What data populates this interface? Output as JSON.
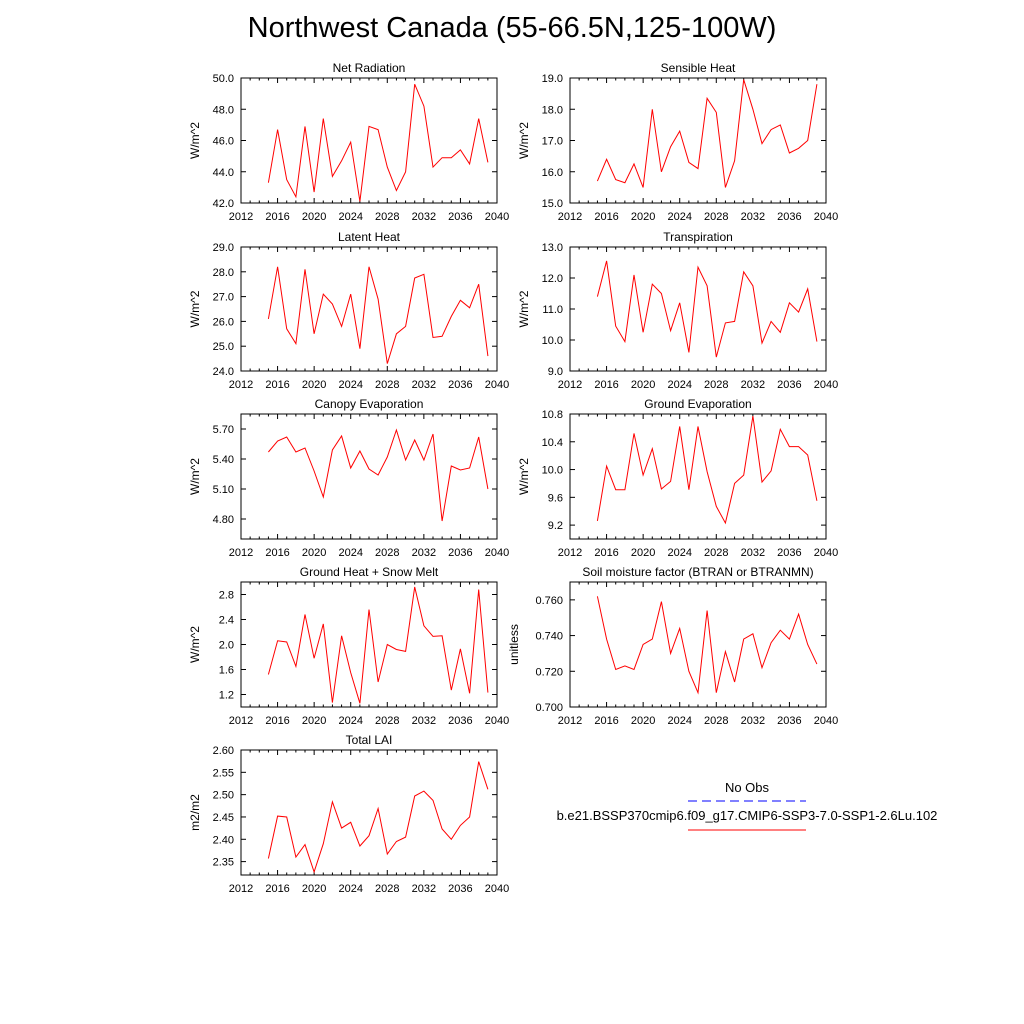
{
  "page_title": "Northwest Canada (55-66.5N,125-100W)",
  "legend": {
    "obs_label": "No Obs",
    "case_label": "b.e21.BSSP370cmip6.f09_g17.CMIP6-SSP3-7.0-SSP1-2.6Lu.102",
    "obs_color": "#0000ff",
    "case_color": "#ff0000"
  },
  "chart_data": [
    {
      "type": "line",
      "title": "Net Radiation",
      "ylabel": "W/m^2",
      "xlim": [
        2012,
        2040
      ],
      "ylim": [
        42.0,
        50.0
      ],
      "xticks": [
        2012,
        2016,
        2020,
        2024,
        2028,
        2032,
        2036,
        2040
      ],
      "yticks": [
        42.0,
        44.0,
        46.0,
        48.0,
        50.0
      ],
      "ytick_labels": [
        "42.0",
        "44.0",
        "46.0",
        "48.0",
        "50.0"
      ],
      "x": [
        2015,
        2016,
        2017,
        2018,
        2019,
        2020,
        2021,
        2022,
        2023,
        2024,
        2025,
        2026,
        2027,
        2028,
        2029,
        2030,
        2031,
        2032,
        2033,
        2034,
        2035,
        2036,
        2037,
        2038,
        2039
      ],
      "series": [
        {
          "values": [
            43.3,
            46.7,
            43.5,
            42.4,
            46.9,
            42.7,
            47.4,
            43.7,
            44.7,
            45.9,
            42.1,
            46.9,
            46.7,
            44.3,
            42.8,
            44.0,
            49.6,
            48.2,
            44.3,
            44.9,
            44.9,
            45.4,
            44.5,
            47.4,
            44.6
          ]
        }
      ]
    },
    {
      "type": "line",
      "title": "Sensible Heat",
      "ylabel": "W/m^2",
      "xlim": [
        2012,
        2040
      ],
      "ylim": [
        15.0,
        19.0
      ],
      "xticks": [
        2012,
        2016,
        2020,
        2024,
        2028,
        2032,
        2036,
        2040
      ],
      "yticks": [
        15.0,
        16.0,
        17.0,
        18.0,
        19.0
      ],
      "ytick_labels": [
        "15.0",
        "16.0",
        "17.0",
        "18.0",
        "19.0"
      ],
      "x": [
        2015,
        2016,
        2017,
        2018,
        2019,
        2020,
        2021,
        2022,
        2023,
        2024,
        2025,
        2026,
        2027,
        2028,
        2029,
        2030,
        2031,
        2032,
        2033,
        2034,
        2035,
        2036,
        2037,
        2038,
        2039
      ],
      "series": [
        {
          "values": [
            15.7,
            16.4,
            15.75,
            15.65,
            16.25,
            15.5,
            18.0,
            16.0,
            16.8,
            17.3,
            16.3,
            16.1,
            18.35,
            17.9,
            15.5,
            16.35,
            18.95,
            18.0,
            16.9,
            17.35,
            17.5,
            16.6,
            16.75,
            17.0,
            18.8
          ]
        }
      ]
    },
    {
      "type": "line",
      "title": "Latent Heat",
      "ylabel": "W/m^2",
      "xlim": [
        2012,
        2040
      ],
      "ylim": [
        24.0,
        29.0
      ],
      "xticks": [
        2012,
        2016,
        2020,
        2024,
        2028,
        2032,
        2036,
        2040
      ],
      "yticks": [
        24.0,
        25.0,
        26.0,
        27.0,
        28.0,
        29.0
      ],
      "ytick_labels": [
        "24.0",
        "25.0",
        "26.0",
        "27.0",
        "28.0",
        "29.0"
      ],
      "x": [
        2015,
        2016,
        2017,
        2018,
        2019,
        2020,
        2021,
        2022,
        2023,
        2024,
        2025,
        2026,
        2027,
        2028,
        2029,
        2030,
        2031,
        2032,
        2033,
        2034,
        2035,
        2036,
        2037,
        2038,
        2039
      ],
      "series": [
        {
          "values": [
            26.1,
            28.2,
            25.7,
            25.1,
            28.1,
            25.5,
            27.1,
            26.7,
            25.8,
            27.1,
            24.9,
            28.2,
            26.9,
            24.3,
            25.5,
            25.8,
            27.75,
            27.9,
            25.35,
            25.4,
            26.2,
            26.85,
            26.55,
            27.5,
            24.6
          ]
        }
      ]
    },
    {
      "type": "line",
      "title": "Transpiration",
      "ylabel": "W/m^2",
      "xlim": [
        2012,
        2040
      ],
      "ylim": [
        9.0,
        13.0
      ],
      "xticks": [
        2012,
        2016,
        2020,
        2024,
        2028,
        2032,
        2036,
        2040
      ],
      "yticks": [
        9.0,
        10.0,
        11.0,
        12.0,
        13.0
      ],
      "ytick_labels": [
        "9.0",
        "10.0",
        "11.0",
        "12.0",
        "13.0"
      ],
      "x": [
        2015,
        2016,
        2017,
        2018,
        2019,
        2020,
        2021,
        2022,
        2023,
        2024,
        2025,
        2026,
        2027,
        2028,
        2029,
        2030,
        2031,
        2032,
        2033,
        2034,
        2035,
        2036,
        2037,
        2038,
        2039
      ],
      "series": [
        {
          "values": [
            11.4,
            12.55,
            10.45,
            9.95,
            12.1,
            10.25,
            11.8,
            11.5,
            10.3,
            11.2,
            9.6,
            12.35,
            11.75,
            9.45,
            10.55,
            10.6,
            12.2,
            11.75,
            9.9,
            10.6,
            10.25,
            11.2,
            10.9,
            11.65,
            9.95
          ]
        }
      ]
    },
    {
      "type": "line",
      "title": "Canopy Evaporation",
      "ylabel": "W/m^2",
      "xlim": [
        2012,
        2040
      ],
      "ylim": [
        4.6,
        5.85
      ],
      "xticks": [
        2012,
        2016,
        2020,
        2024,
        2028,
        2032,
        2036,
        2040
      ],
      "yticks": [
        4.8,
        5.1,
        5.4,
        5.7
      ],
      "ytick_labels": [
        "4.80",
        "5.10",
        "5.40",
        "5.70"
      ],
      "x": [
        2015,
        2016,
        2017,
        2018,
        2019,
        2020,
        2021,
        2022,
        2023,
        2024,
        2025,
        2026,
        2027,
        2028,
        2029,
        2030,
        2031,
        2032,
        2033,
        2034,
        2035,
        2036,
        2037,
        2038,
        2039
      ],
      "series": [
        {
          "values": [
            5.47,
            5.58,
            5.62,
            5.47,
            5.51,
            5.28,
            5.02,
            5.49,
            5.63,
            5.31,
            5.48,
            5.3,
            5.24,
            5.42,
            5.69,
            5.39,
            5.59,
            5.39,
            5.65,
            4.78,
            5.33,
            5.29,
            5.31,
            5.62,
            5.1
          ]
        }
      ]
    },
    {
      "type": "line",
      "title": "Ground Evaporation",
      "ylabel": "W/m^2",
      "xlim": [
        2012,
        2040
      ],
      "ylim": [
        9.0,
        10.8
      ],
      "xticks": [
        2012,
        2016,
        2020,
        2024,
        2028,
        2032,
        2036,
        2040
      ],
      "yticks": [
        9.2,
        9.6,
        10.0,
        10.4,
        10.8
      ],
      "ytick_labels": [
        "9.2",
        "9.6",
        "10.0",
        "10.4",
        "10.8"
      ],
      "x": [
        2015,
        2016,
        2017,
        2018,
        2019,
        2020,
        2021,
        2022,
        2023,
        2024,
        2025,
        2026,
        2027,
        2028,
        2029,
        2030,
        2031,
        2032,
        2033,
        2034,
        2035,
        2036,
        2037,
        2038,
        2039
      ],
      "series": [
        {
          "values": [
            9.26,
            10.05,
            9.71,
            9.71,
            10.52,
            9.92,
            10.3,
            9.72,
            9.83,
            10.62,
            9.71,
            10.62,
            9.97,
            9.47,
            9.23,
            9.8,
            9.92,
            10.77,
            9.82,
            9.98,
            10.58,
            10.33,
            10.33,
            10.21,
            9.55
          ]
        }
      ]
    },
    {
      "type": "line",
      "title": "Ground Heat + Snow Melt",
      "ylabel": "W/m^2",
      "xlim": [
        2012,
        2040
      ],
      "ylim": [
        1.0,
        3.0
      ],
      "xticks": [
        2012,
        2016,
        2020,
        2024,
        2028,
        2032,
        2036,
        2040
      ],
      "yticks": [
        1.2,
        1.6,
        2.0,
        2.4,
        2.8
      ],
      "ytick_labels": [
        "1.2",
        "1.6",
        "2.0",
        "2.4",
        "2.8"
      ],
      "x": [
        2015,
        2016,
        2017,
        2018,
        2019,
        2020,
        2021,
        2022,
        2023,
        2024,
        2025,
        2026,
        2027,
        2028,
        2029,
        2030,
        2031,
        2032,
        2033,
        2034,
        2035,
        2036,
        2037,
        2038,
        2039
      ],
      "series": [
        {
          "values": [
            1.52,
            2.06,
            2.04,
            1.65,
            2.48,
            1.78,
            2.33,
            1.07,
            2.14,
            1.55,
            1.06,
            2.56,
            1.4,
            2.0,
            1.92,
            1.89,
            2.92,
            2.3,
            2.13,
            2.14,
            1.27,
            1.93,
            1.22,
            2.88,
            1.23
          ]
        }
      ]
    },
    {
      "type": "line",
      "title": "Soil moisture factor (BTRAN or BTRANMN)",
      "ylabel": "unitless",
      "xlim": [
        2012,
        2040
      ],
      "ylim": [
        0.7,
        0.77
      ],
      "xticks": [
        2012,
        2016,
        2020,
        2024,
        2028,
        2032,
        2036,
        2040
      ],
      "yticks": [
        0.7,
        0.72,
        0.74,
        0.76
      ],
      "ytick_labels": [
        "0.700",
        "0.720",
        "0.740",
        "0.760"
      ],
      "x": [
        2015,
        2016,
        2017,
        2018,
        2019,
        2020,
        2021,
        2022,
        2023,
        2024,
        2025,
        2026,
        2027,
        2028,
        2029,
        2030,
        2031,
        2032,
        2033,
        2034,
        2035,
        2036,
        2037,
        2038,
        2039
      ],
      "series": [
        {
          "values": [
            0.762,
            0.738,
            0.721,
            0.723,
            0.721,
            0.735,
            0.738,
            0.759,
            0.73,
            0.744,
            0.72,
            0.708,
            0.754,
            0.708,
            0.731,
            0.714,
            0.738,
            0.741,
            0.722,
            0.736,
            0.743,
            0.738,
            0.752,
            0.735,
            0.724
          ]
        }
      ]
    },
    {
      "type": "line",
      "title": "Total LAI",
      "ylabel": "m2/m2",
      "xlim": [
        2012,
        2040
      ],
      "ylim": [
        2.32,
        2.6
      ],
      "xticks": [
        2012,
        2016,
        2020,
        2024,
        2028,
        2032,
        2036,
        2040
      ],
      "yticks": [
        2.35,
        2.4,
        2.45,
        2.5,
        2.55,
        2.6
      ],
      "ytick_labels": [
        "2.35",
        "2.40",
        "2.45",
        "2.50",
        "2.55",
        "2.60"
      ],
      "x": [
        2015,
        2016,
        2017,
        2018,
        2019,
        2020,
        2021,
        2022,
        2023,
        2024,
        2025,
        2026,
        2027,
        2028,
        2029,
        2030,
        2031,
        2032,
        2033,
        2034,
        2035,
        2036,
        2037,
        2038,
        2039
      ],
      "series": [
        {
          "values": [
            2.357,
            2.452,
            2.45,
            2.36,
            2.388,
            2.327,
            2.39,
            2.484,
            2.425,
            2.438,
            2.385,
            2.408,
            2.469,
            2.367,
            2.395,
            2.405,
            2.497,
            2.508,
            2.487,
            2.423,
            2.4,
            2.431,
            2.45,
            2.574,
            2.512
          ]
        }
      ]
    }
  ]
}
